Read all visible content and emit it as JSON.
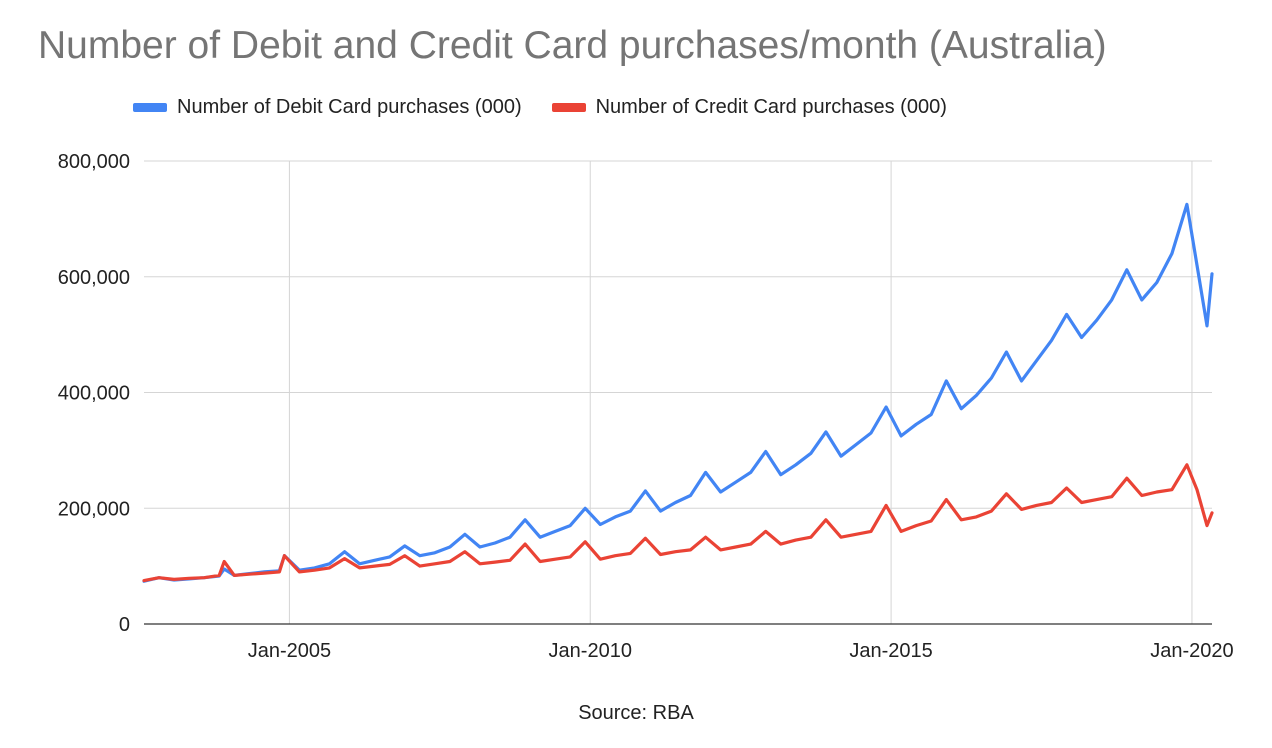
{
  "chart_data": {
    "type": "line",
    "title": "Number of Debit and Credit Card purchases/month (Australia)",
    "xlabel": "",
    "ylabel": "",
    "source": "Source: RBA",
    "legend_position": "top",
    "grid": true,
    "ylim": [
      0,
      800000
    ],
    "y_ticks": [
      "0",
      "200,000",
      "400,000",
      "600,000",
      "800,000"
    ],
    "y_tick_values": [
      0,
      200000,
      400000,
      600000,
      800000
    ],
    "x_ticks": [
      "Jan-2005",
      "Jan-2010",
      "Jan-2015",
      "Jan-2020"
    ],
    "x_tick_dates": [
      "2005-01",
      "2010-01",
      "2015-01",
      "2020-01"
    ],
    "x_range": [
      "2002-08",
      "2020-05"
    ],
    "x": [
      "2002-08",
      "2002-11",
      "2003-02",
      "2003-05",
      "2003-08",
      "2003-11",
      "2003-12",
      "2004-02",
      "2004-05",
      "2004-08",
      "2004-11",
      "2004-12",
      "2005-03",
      "2005-06",
      "2005-09",
      "2005-12",
      "2006-03",
      "2006-06",
      "2006-09",
      "2006-12",
      "2007-03",
      "2007-06",
      "2007-09",
      "2007-12",
      "2008-03",
      "2008-06",
      "2008-09",
      "2008-12",
      "2009-03",
      "2009-06",
      "2009-09",
      "2009-12",
      "2010-03",
      "2010-06",
      "2010-09",
      "2010-12",
      "2011-03",
      "2011-06",
      "2011-09",
      "2011-12",
      "2012-03",
      "2012-06",
      "2012-09",
      "2012-12",
      "2013-03",
      "2013-06",
      "2013-09",
      "2013-12",
      "2014-03",
      "2014-06",
      "2014-09",
      "2014-12",
      "2015-03",
      "2015-06",
      "2015-09",
      "2015-12",
      "2016-03",
      "2016-06",
      "2016-09",
      "2016-12",
      "2017-03",
      "2017-06",
      "2017-09",
      "2017-12",
      "2018-03",
      "2018-06",
      "2018-09",
      "2018-12",
      "2019-03",
      "2019-06",
      "2019-09",
      "2019-12",
      "2020-02",
      "2020-04",
      "2020-05"
    ],
    "series": [
      {
        "name": "Number of Debit Card purchases (000)",
        "color": "#4285f4",
        "values": [
          74000,
          80000,
          76000,
          78000,
          80000,
          83000,
          95000,
          84000,
          87000,
          90000,
          92000,
          118000,
          93000,
          97000,
          104000,
          125000,
          104000,
          110000,
          116000,
          135000,
          118000,
          123000,
          133000,
          155000,
          133000,
          140000,
          150000,
          180000,
          150000,
          160000,
          170000,
          200000,
          172000,
          185000,
          195000,
          230000,
          195000,
          210000,
          222000,
          262000,
          228000,
          245000,
          262000,
          298000,
          258000,
          275000,
          295000,
          332000,
          290000,
          310000,
          330000,
          375000,
          325000,
          345000,
          362000,
          420000,
          372000,
          395000,
          425000,
          470000,
          420000,
          455000,
          490000,
          535000,
          495000,
          525000,
          560000,
          612000,
          560000,
          590000,
          640000,
          725000,
          620000,
          515000,
          605000
        ]
      },
      {
        "name": "Number of Credit Card purchases (000)",
        "color": "#ea4335",
        "values": [
          75000,
          80000,
          77000,
          79000,
          80000,
          84000,
          108000,
          84000,
          86000,
          88000,
          90000,
          118000,
          90000,
          93000,
          97000,
          113000,
          97000,
          100000,
          103000,
          118000,
          100000,
          104000,
          108000,
          125000,
          104000,
          107000,
          110000,
          138000,
          108000,
          112000,
          116000,
          142000,
          112000,
          118000,
          122000,
          148000,
          120000,
          125000,
          128000,
          150000,
          128000,
          133000,
          138000,
          160000,
          138000,
          145000,
          150000,
          180000,
          150000,
          155000,
          160000,
          205000,
          160000,
          170000,
          178000,
          215000,
          180000,
          185000,
          195000,
          225000,
          198000,
          205000,
          210000,
          235000,
          210000,
          215000,
          220000,
          252000,
          222000,
          228000,
          232000,
          275000,
          232000,
          170000,
          192000
        ]
      }
    ]
  }
}
